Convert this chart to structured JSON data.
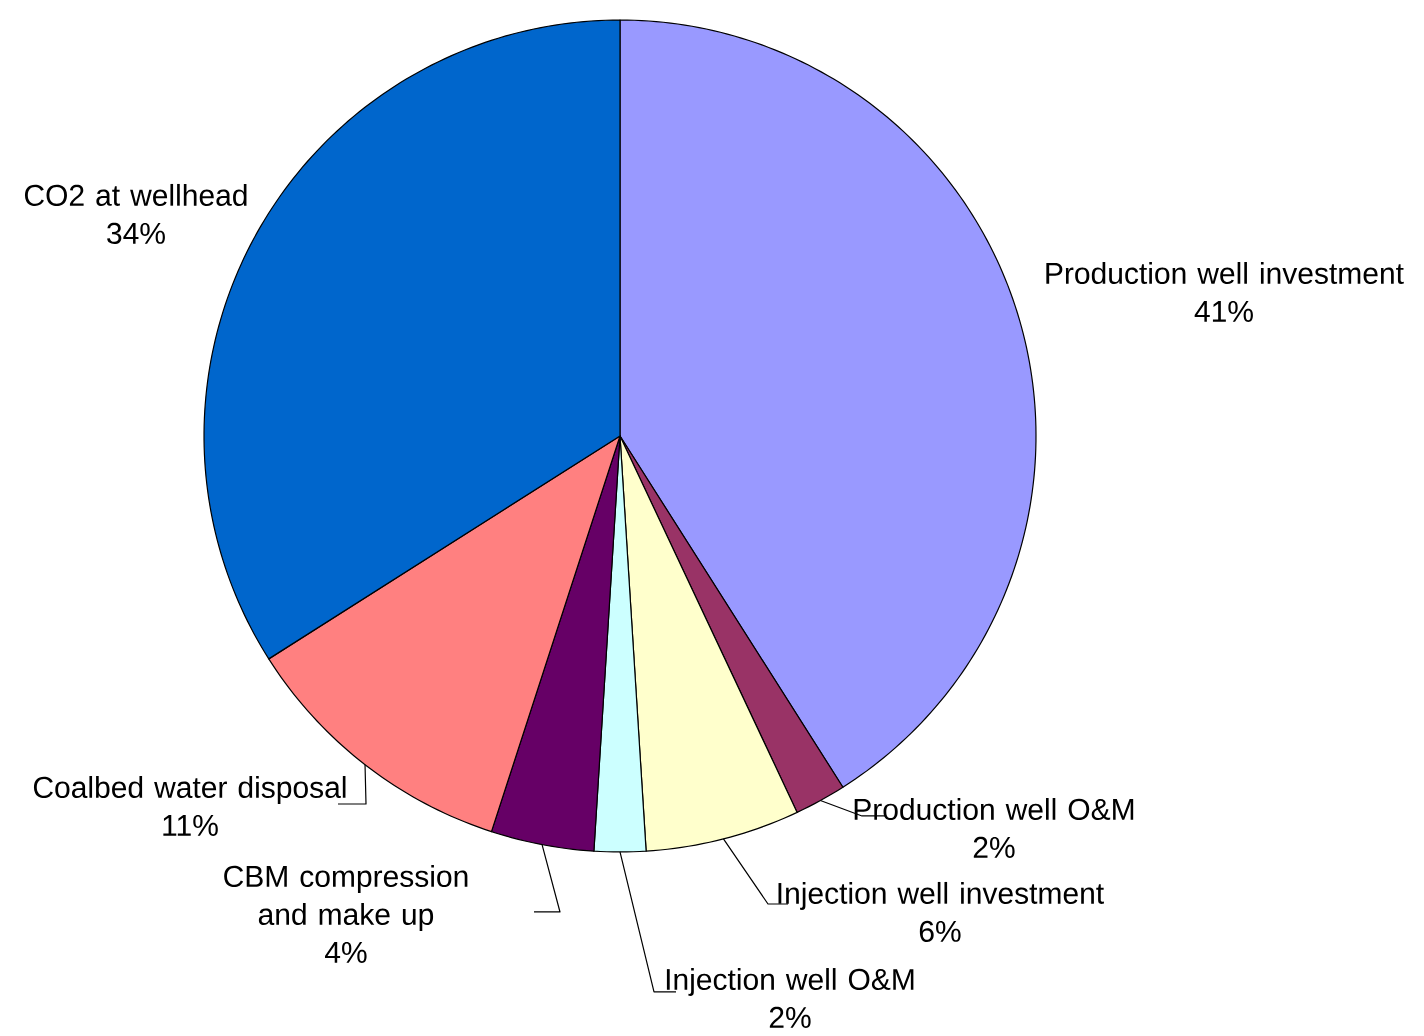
{
  "chart_data": {
    "type": "pie",
    "categories": [
      "Production well investment",
      "Production well O&M",
      "Injection well investment",
      "Injection well O&M",
      "CBM compression and make up",
      "Coalbed water disposal",
      "CO2 at wellhead"
    ],
    "values": [
      41,
      2,
      6,
      2,
      4,
      11,
      34
    ],
    "colors": [
      "#9999ff",
      "#993366",
      "#ffffcc",
      "#ccffff",
      "#660066",
      "#ff8080",
      "#0066cc"
    ],
    "value_labels": [
      "41%",
      "2%",
      "6%",
      "2%",
      "4%",
      "11%",
      "34%"
    ]
  }
}
